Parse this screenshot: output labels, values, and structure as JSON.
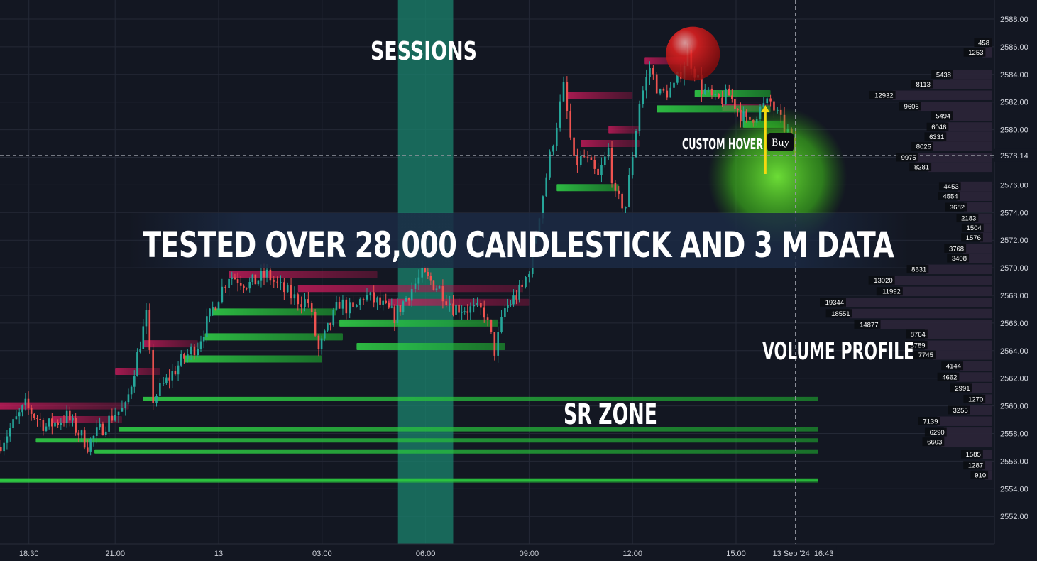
{
  "labels": {
    "sessions": "SESSIONS",
    "headline": "TESTED OVER 28,000 CANDLESTICK AND 3 M DATA",
    "custom_hover": "CUSTOM HOVER",
    "buy": "Buy",
    "volume_profile": "VOLUME PROFILE",
    "sr_zone": "SR ZONE"
  },
  "colors": {
    "background": "#131722",
    "grid": "#242936",
    "session": "#1a7f6a",
    "resistance": "#c2185b",
    "support": "#2ecc40",
    "bull": "#26a69a",
    "bear": "#ef5350",
    "vp_bar": "#2a2438",
    "vp_label_bg": "#0b0d12",
    "hover_arrow": "#f5d80f"
  },
  "chart_data": {
    "type": "candlestick",
    "ylim": [
      2550.0,
      2589.0
    ],
    "y_ticks": [
      "2552.00",
      "2554.00",
      "2556.00",
      "2558.00",
      "2560.00",
      "2562.00",
      "2564.00",
      "2566.00",
      "2568.00",
      "2570.00",
      "2572.00",
      "2574.00",
      "2576.00",
      "2578.00",
      "2580.00",
      "2582.00",
      "2584.00",
      "2586.00",
      "2588.00"
    ],
    "y_values": [
      2552,
      2554,
      2556,
      2558,
      2560,
      2562,
      2564,
      2566,
      2568,
      2570,
      2572,
      2574,
      2576,
      2578,
      2580,
      2582,
      2584,
      2586,
      2588
    ],
    "x_ticks": [
      "18:30",
      "21:00",
      "13",
      "03:00",
      "06:00",
      "09:00",
      "12:00",
      "15:00"
    ],
    "x_tick_hours": [
      -5.5,
      -3,
      0,
      3,
      6,
      9,
      12,
      15
    ],
    "x_range_hours": [
      -6.4,
      21.3
    ],
    "crosshair": {
      "price": "2578.14",
      "price_value": 2578.14,
      "date": "13 Sep '24",
      "time": "16:43",
      "hour": 16.72
    },
    "session": {
      "start_hour": 5.2,
      "end_hour": 6.8
    },
    "price_path": [
      [
        -6.4,
        2557
      ],
      [
        -5.6,
        2560
      ],
      [
        -5.0,
        2558.5
      ],
      [
        -4.4,
        2559.2
      ],
      [
        -3.8,
        2557.2
      ],
      [
        -3.0,
        2559.5
      ],
      [
        -2.7,
        2559.8
      ],
      [
        -2.1,
        2566.5
      ],
      [
        -1.9,
        2560.5
      ],
      [
        -1.6,
        2561.5
      ],
      [
        -1.0,
        2563.5
      ],
      [
        -0.6,
        2564.5
      ],
      [
        0,
        2568
      ],
      [
        0.3,
        2569.5
      ],
      [
        0.9,
        2568.8
      ],
      [
        1.4,
        2569.5
      ],
      [
        1.8,
        2568.5
      ],
      [
        2.2,
        2567.8
      ],
      [
        2.6,
        2567.5
      ],
      [
        2.9,
        2564
      ],
      [
        3.5,
        2567.5
      ],
      [
        3.9,
        2566.8
      ],
      [
        4.2,
        2568
      ],
      [
        4.6,
        2567.5
      ],
      [
        5.1,
        2566.5
      ],
      [
        5.6,
        2568.5
      ],
      [
        5.9,
        2569.5
      ],
      [
        6.4,
        2568.5
      ],
      [
        6.8,
        2567.2
      ],
      [
        7.3,
        2567
      ],
      [
        7.7,
        2566.8
      ],
      [
        8.0,
        2564
      ],
      [
        8.3,
        2567
      ],
      [
        8.8,
        2568.5
      ],
      [
        9.0,
        2570
      ],
      [
        9.3,
        2574
      ],
      [
        9.6,
        2578
      ],
      [
        10.0,
        2583
      ],
      [
        10.3,
        2577.5
      ],
      [
        10.6,
        2578
      ],
      [
        11.0,
        2576.5
      ],
      [
        11.3,
        2578.5
      ],
      [
        11.5,
        2575
      ],
      [
        11.8,
        2574.5
      ],
      [
        12.2,
        2582
      ],
      [
        12.5,
        2584.5
      ],
      [
        12.8,
        2582.5
      ],
      [
        13.2,
        2583
      ],
      [
        13.6,
        2585.5
      ],
      [
        14.0,
        2583
      ],
      [
        14.4,
        2582
      ],
      [
        14.8,
        2582.5
      ],
      [
        15.3,
        2580.5
      ],
      [
        15.7,
        2581.5
      ],
      [
        16.0,
        2582
      ],
      [
        16.3,
        2580.5
      ],
      [
        16.5,
        2579.8
      ],
      [
        16.72,
        2578.14
      ]
    ],
    "resistance_zones": [
      {
        "price": 2585.0,
        "from_hour": 12.35,
        "to_hour": 13.6
      },
      {
        "price": 2581.6,
        "from_hour": 14.6,
        "to_hour": 16.0
      },
      {
        "price": 2582.5,
        "from_hour": 10.1,
        "to_hour": 12.0
      },
      {
        "price": 2580.0,
        "from_hour": 11.3,
        "to_hour": 12.2
      },
      {
        "price": 2579.0,
        "from_hour": 10.5,
        "to_hour": 12.2
      },
      {
        "price": 2569.5,
        "from_hour": 0.3,
        "to_hour": 4.6
      },
      {
        "price": 2568.5,
        "from_hour": 2.3,
        "to_hour": 8.8
      },
      {
        "price": 2567.5,
        "from_hour": 4.9,
        "to_hour": 9.0
      },
      {
        "price": 2564.5,
        "from_hour": -2.2,
        "to_hour": -0.6
      },
      {
        "price": 2562.5,
        "from_hour": -3.0,
        "to_hour": -1.7
      },
      {
        "price": 2560.0,
        "from_hour": -6.4,
        "to_hour": -2.6
      },
      {
        "price": 2559.0,
        "from_hour": -4.8,
        "to_hour": -2.8
      }
    ],
    "support_zones": [
      {
        "price": 2581.5,
        "from_hour": 12.7,
        "to_hour": 16.0
      },
      {
        "price": 2582.6,
        "from_hour": 13.8,
        "to_hour": 16.0
      },
      {
        "price": 2580.4,
        "from_hour": 15.2,
        "to_hour": 16.4
      },
      {
        "price": 2575.8,
        "from_hour": 9.8,
        "to_hour": 11.6
      },
      {
        "price": 2566.8,
        "from_hour": -0.2,
        "to_hour": 3.4
      },
      {
        "price": 2566.0,
        "from_hour": 3.5,
        "to_hour": 8.1
      },
      {
        "price": 2564.3,
        "from_hour": 4.0,
        "to_hour": 8.3
      },
      {
        "price": 2563.4,
        "from_hour": -1.0,
        "to_hour": 3.0
      },
      {
        "price": 2565.0,
        "from_hour": -0.4,
        "to_hour": 3.6
      },
      {
        "price": 2560.5,
        "from_hour": -2.2,
        "to_hour": 20.9
      },
      {
        "price": 2558.3,
        "from_hour": -2.9,
        "to_hour": 20.9
      },
      {
        "price": 2557.5,
        "from_hour": -5.3,
        "to_hour": 20.9
      },
      {
        "price": 2556.7,
        "from_hour": -3.6,
        "to_hour": 20.9
      },
      {
        "price": 2554.6,
        "from_hour": -6.4,
        "to_hour": 20.9
      }
    ],
    "volume_profile": [
      {
        "price": 2586.3,
        "volume": 458
      },
      {
        "price": 2585.6,
        "volume": 1253
      },
      {
        "price": 2584.0,
        "volume": 5438
      },
      {
        "price": 2583.3,
        "volume": 8113
      },
      {
        "price": 2582.5,
        "volume": 12932
      },
      {
        "price": 2581.7,
        "volume": 9606
      },
      {
        "price": 2581.0,
        "volume": 5494
      },
      {
        "price": 2580.2,
        "volume": 6046
      },
      {
        "price": 2579.5,
        "volume": 6331
      },
      {
        "price": 2578.8,
        "volume": 8025
      },
      {
        "price": 2578.0,
        "volume": 9975
      },
      {
        "price": 2577.3,
        "volume": 8281
      },
      {
        "price": 2575.9,
        "volume": 4453
      },
      {
        "price": 2575.2,
        "volume": 4554
      },
      {
        "price": 2574.4,
        "volume": 3682
      },
      {
        "price": 2573.6,
        "volume": 2183
      },
      {
        "price": 2572.9,
        "volume": 1504
      },
      {
        "price": 2572.2,
        "volume": 1576
      },
      {
        "price": 2571.4,
        "volume": 3768
      },
      {
        "price": 2570.7,
        "volume": 3408
      },
      {
        "price": 2569.9,
        "volume": 8631
      },
      {
        "price": 2569.1,
        "volume": 13020
      },
      {
        "price": 2568.3,
        "volume": 11992
      },
      {
        "price": 2567.5,
        "volume": 19344
      },
      {
        "price": 2566.7,
        "volume": 18551
      },
      {
        "price": 2565.9,
        "volume": 14877
      },
      {
        "price": 2565.2,
        "volume": 8764
      },
      {
        "price": 2564.4,
        "volume": 8789
      },
      {
        "price": 2563.7,
        "volume": 7745
      },
      {
        "price": 2562.9,
        "volume": 4144
      },
      {
        "price": 2562.1,
        "volume": 4662
      },
      {
        "price": 2561.3,
        "volume": 2991
      },
      {
        "price": 2560.5,
        "volume": 1270
      },
      {
        "price": 2559.7,
        "volume": 3255
      },
      {
        "price": 2558.9,
        "volume": 7139
      },
      {
        "price": 2558.1,
        "volume": 6290
      },
      {
        "price": 2557.4,
        "volume": 6603
      },
      {
        "price": 2556.5,
        "volume": 1585
      },
      {
        "price": 2555.7,
        "volume": 1287
      },
      {
        "price": 2555.0,
        "volume": 910
      }
    ],
    "markers": [
      {
        "kind": "red-circle",
        "price": 2585.5,
        "hour": 13.75
      },
      {
        "kind": "green-glow",
        "price": 2576.6,
        "hour": 16.2
      },
      {
        "kind": "buy-arrow",
        "price": 2578.5,
        "hour": 15.85
      }
    ]
  }
}
